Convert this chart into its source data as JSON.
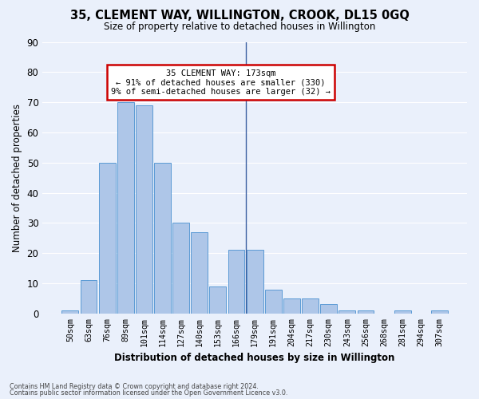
{
  "title": "35, CLEMENT WAY, WILLINGTON, CROOK, DL15 0GQ",
  "subtitle": "Size of property relative to detached houses in Willington",
  "xlabel": "Distribution of detached houses by size in Willington",
  "ylabel": "Number of detached properties",
  "bar_labels": [
    "50sqm",
    "63sqm",
    "76sqm",
    "89sqm",
    "101sqm",
    "114sqm",
    "127sqm",
    "140sqm",
    "153sqm",
    "166sqm",
    "179sqm",
    "191sqm",
    "204sqm",
    "217sqm",
    "230sqm",
    "243sqm",
    "256sqm",
    "268sqm",
    "281sqm",
    "294sqm",
    "307sqm"
  ],
  "bar_values": [
    1,
    11,
    50,
    70,
    69,
    50,
    30,
    27,
    9,
    21,
    21,
    8,
    5,
    5,
    3,
    1,
    1,
    0,
    1,
    0,
    1
  ],
  "bar_color": "#aec6e8",
  "bar_edge_color": "#5b9bd5",
  "vline_index": 9.5,
  "annotation_title": "35 CLEMENT WAY: 173sqm",
  "annotation_line1": "← 91% of detached houses are smaller (330)",
  "annotation_line2": "9% of semi-detached houses are larger (32) →",
  "annotation_box_color": "#ffffff",
  "annotation_box_edge_color": "#cc0000",
  "ylim": [
    0,
    90
  ],
  "yticks": [
    0,
    10,
    20,
    30,
    40,
    50,
    60,
    70,
    80,
    90
  ],
  "background_color": "#eaf0fb",
  "grid_color": "#ffffff",
  "footer_line1": "Contains HM Land Registry data © Crown copyright and database right 2024.",
  "footer_line2": "Contains public sector information licensed under the Open Government Licence v3.0."
}
